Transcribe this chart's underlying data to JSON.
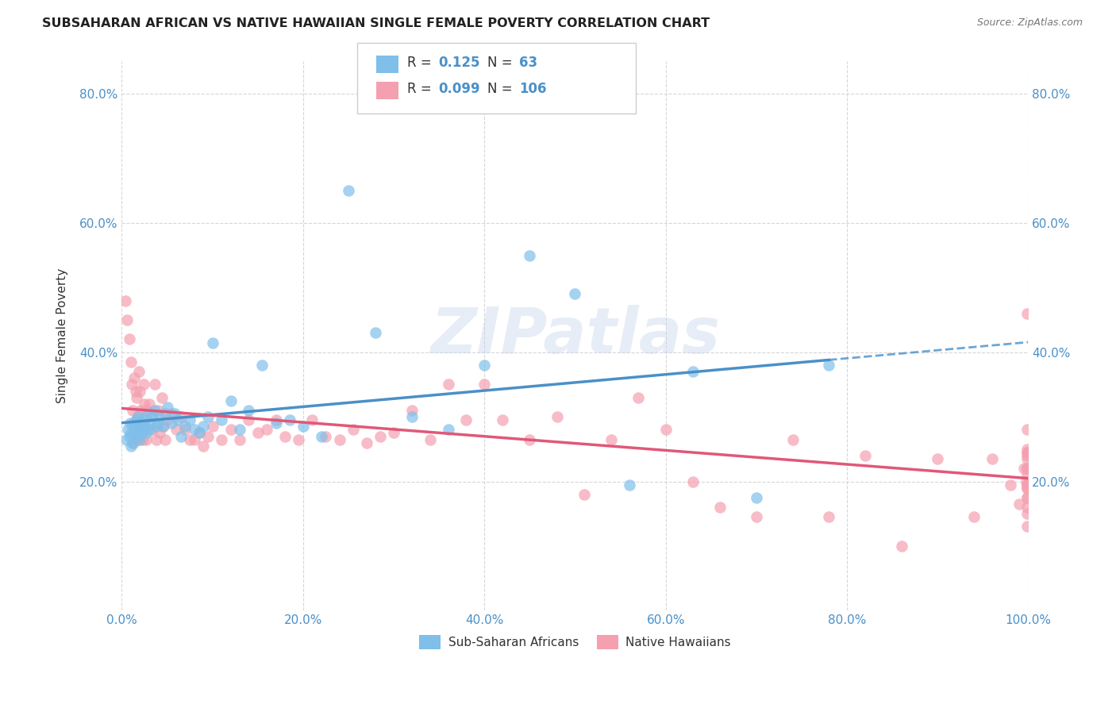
{
  "title": "SUBSAHARAN AFRICAN VS NATIVE HAWAIIAN SINGLE FEMALE POVERTY CORRELATION CHART",
  "source": "Source: ZipAtlas.com",
  "ylabel": "Single Female Poverty",
  "xlim": [
    0,
    1.0
  ],
  "ylim": [
    0,
    0.85
  ],
  "xtick_labels": [
    "0.0%",
    "20.0%",
    "40.0%",
    "60.0%",
    "80.0%",
    "100.0%"
  ],
  "xtick_vals": [
    0,
    0.2,
    0.4,
    0.6,
    0.8,
    1.0
  ],
  "ytick_labels": [
    "20.0%",
    "40.0%",
    "60.0%",
    "80.0%"
  ],
  "ytick_vals": [
    0.2,
    0.4,
    0.6,
    0.8
  ],
  "blue_color": "#7fbfea",
  "pink_color": "#f4a0b0",
  "blue_line_color": "#4a90c8",
  "pink_line_color": "#e05878",
  "watermark": "ZIPatlas",
  "legend_R_blue": "0.125",
  "legend_N_blue": "63",
  "legend_R_pink": "0.099",
  "legend_N_pink": "106",
  "legend_label_blue": "Sub-Saharan Africans",
  "legend_label_pink": "Native Hawaiians",
  "blue_x": [
    0.005,
    0.007,
    0.008,
    0.009,
    0.01,
    0.01,
    0.012,
    0.013,
    0.014,
    0.015,
    0.016,
    0.017,
    0.018,
    0.019,
    0.02,
    0.021,
    0.022,
    0.023,
    0.024,
    0.025,
    0.027,
    0.028,
    0.03,
    0.032,
    0.034,
    0.036,
    0.038,
    0.04,
    0.042,
    0.045,
    0.048,
    0.05,
    0.055,
    0.058,
    0.062,
    0.065,
    0.07,
    0.075,
    0.08,
    0.085,
    0.09,
    0.095,
    0.1,
    0.11,
    0.12,
    0.13,
    0.14,
    0.155,
    0.17,
    0.185,
    0.2,
    0.22,
    0.25,
    0.28,
    0.32,
    0.36,
    0.4,
    0.45,
    0.5,
    0.56,
    0.63,
    0.7,
    0.78
  ],
  "blue_y": [
    0.265,
    0.28,
    0.27,
    0.29,
    0.255,
    0.275,
    0.26,
    0.29,
    0.275,
    0.285,
    0.295,
    0.27,
    0.3,
    0.28,
    0.265,
    0.29,
    0.275,
    0.28,
    0.295,
    0.285,
    0.3,
    0.275,
    0.28,
    0.29,
    0.3,
    0.31,
    0.285,
    0.29,
    0.3,
    0.285,
    0.305,
    0.315,
    0.29,
    0.305,
    0.295,
    0.27,
    0.285,
    0.295,
    0.28,
    0.275,
    0.285,
    0.3,
    0.415,
    0.295,
    0.325,
    0.28,
    0.31,
    0.38,
    0.29,
    0.295,
    0.285,
    0.27,
    0.65,
    0.43,
    0.3,
    0.28,
    0.38,
    0.55,
    0.49,
    0.195,
    0.37,
    0.175,
    0.38
  ],
  "pink_x": [
    0.004,
    0.006,
    0.008,
    0.01,
    0.011,
    0.012,
    0.013,
    0.014,
    0.015,
    0.016,
    0.017,
    0.018,
    0.019,
    0.02,
    0.021,
    0.022,
    0.023,
    0.024,
    0.025,
    0.026,
    0.027,
    0.028,
    0.03,
    0.032,
    0.034,
    0.036,
    0.038,
    0.04,
    0.042,
    0.044,
    0.046,
    0.048,
    0.05,
    0.055,
    0.06,
    0.065,
    0.07,
    0.075,
    0.08,
    0.085,
    0.09,
    0.095,
    0.1,
    0.11,
    0.12,
    0.13,
    0.14,
    0.15,
    0.16,
    0.17,
    0.18,
    0.195,
    0.21,
    0.225,
    0.24,
    0.255,
    0.27,
    0.285,
    0.3,
    0.32,
    0.34,
    0.36,
    0.38,
    0.4,
    0.42,
    0.45,
    0.48,
    0.51,
    0.54,
    0.57,
    0.6,
    0.63,
    0.66,
    0.7,
    0.74,
    0.78,
    0.82,
    0.86,
    0.9,
    0.94,
    0.96,
    0.98,
    0.99,
    0.995,
    0.998,
    0.999,
    0.999,
    0.999,
    0.999,
    0.999,
    0.999,
    0.999,
    0.999,
    0.999,
    0.999,
    0.999,
    0.999,
    0.999,
    0.999,
    0.999,
    0.999,
    0.999,
    0.999,
    0.999,
    0.999,
    0.999
  ],
  "pink_y": [
    0.48,
    0.45,
    0.42,
    0.385,
    0.35,
    0.31,
    0.26,
    0.36,
    0.34,
    0.33,
    0.3,
    0.265,
    0.37,
    0.34,
    0.31,
    0.285,
    0.265,
    0.35,
    0.32,
    0.285,
    0.265,
    0.31,
    0.32,
    0.3,
    0.28,
    0.35,
    0.265,
    0.31,
    0.275,
    0.33,
    0.285,
    0.265,
    0.295,
    0.305,
    0.28,
    0.3,
    0.28,
    0.265,
    0.265,
    0.275,
    0.255,
    0.27,
    0.285,
    0.265,
    0.28,
    0.265,
    0.295,
    0.275,
    0.28,
    0.295,
    0.27,
    0.265,
    0.295,
    0.27,
    0.265,
    0.28,
    0.26,
    0.27,
    0.275,
    0.31,
    0.265,
    0.35,
    0.295,
    0.35,
    0.295,
    0.265,
    0.3,
    0.18,
    0.265,
    0.33,
    0.28,
    0.2,
    0.16,
    0.145,
    0.265,
    0.145,
    0.24,
    0.1,
    0.235,
    0.145,
    0.235,
    0.195,
    0.165,
    0.22,
    0.2,
    0.235,
    0.15,
    0.22,
    0.175,
    0.21,
    0.245,
    0.195,
    0.16,
    0.175,
    0.25,
    0.22,
    0.195,
    0.245,
    0.19,
    0.24,
    0.46,
    0.13,
    0.22,
    0.195,
    0.19,
    0.28
  ]
}
